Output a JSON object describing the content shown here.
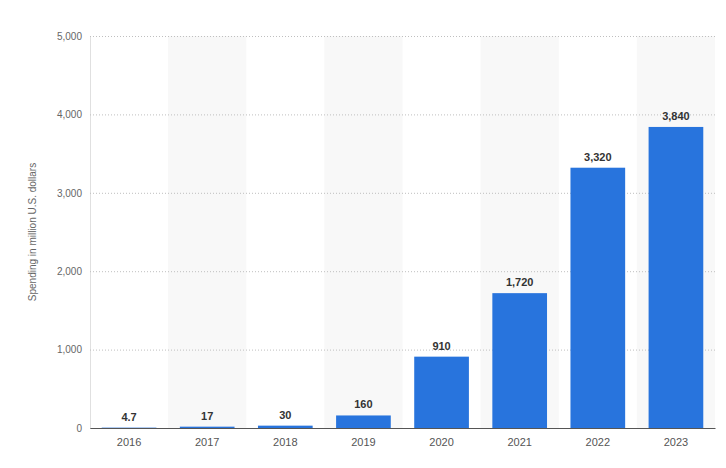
{
  "chart_data": {
    "type": "bar",
    "y_label": "Spending in million U.S. dollars",
    "categories": [
      "2016",
      "2017",
      "2018",
      "2019",
      "2020",
      "2021",
      "2022",
      "2023"
    ],
    "values": [
      4.7,
      17,
      30,
      160,
      910,
      1720,
      3320,
      3840
    ],
    "value_labels": [
      "4.7",
      "17",
      "30",
      "160",
      "910",
      "1,720",
      "3,320",
      "3,840"
    ],
    "color": "#2874dd",
    "ylim": [
      0,
      5000
    ],
    "yticks": [
      0,
      {
        "value": 1000,
        "label": "1,000"
      },
      {
        "value": 2000,
        "label": "2,000"
      },
      {
        "value": 3000,
        "label": "3,000"
      },
      {
        "value": 4000,
        "label": "4,000"
      },
      {
        "value": 5000,
        "label": "5,000"
      }
    ],
    "grid": true,
    "data_labels": true
  }
}
